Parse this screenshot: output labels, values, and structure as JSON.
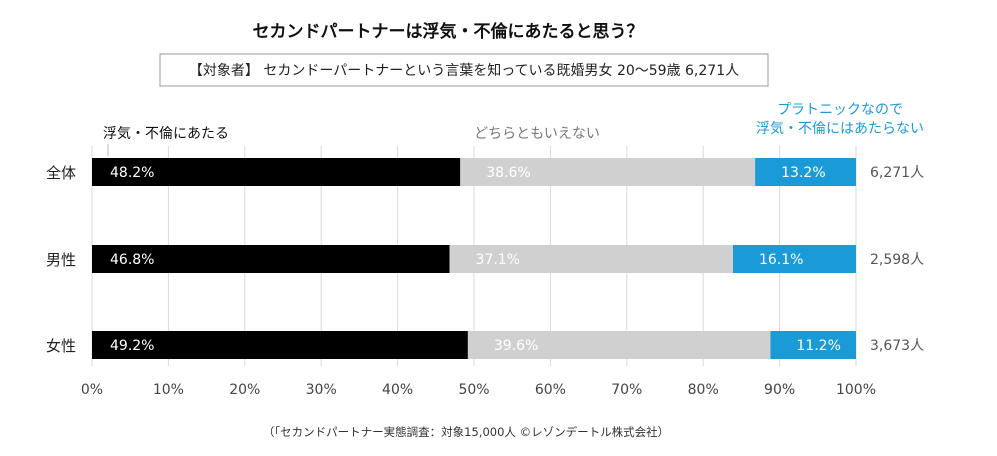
{
  "chart_data": {
    "type": "bar",
    "orientation": "horizontal",
    "stacked": true,
    "title": "セカンドパートナーは浮気・不倫にあたると思う？",
    "subtitle": "【対象者】 セカンドーパートナーという言葉を知っている既婚男女 20～59歳 6,271人",
    "categories": [
      "全体",
      "男性",
      "女性"
    ],
    "counts": [
      "6,271人",
      "2,598人",
      "3,673人"
    ],
    "series": [
      {
        "name": "浮気・不倫にあたる",
        "values": [
          48.2,
          46.8,
          49.2
        ],
        "color": "#000000",
        "label_color": "#ffffff",
        "legend_color": "#111111"
      },
      {
        "name": "どちらともいえない",
        "values": [
          38.6,
          37.1,
          39.6
        ],
        "color": "#d0d0d0",
        "label_color": "#ffffff",
        "legend_color": "#777777"
      },
      {
        "name": "プラトニックなので\n浮気・不倫にはあたらない",
        "values": [
          13.2,
          16.1,
          11.2
        ],
        "color": "#1a9bd7",
        "label_color": "#ffffff",
        "legend_color": "#1a9bd7"
      }
    ],
    "xlim": [
      0,
      100
    ],
    "xticks": [
      0,
      10,
      20,
      30,
      40,
      50,
      60,
      70,
      80,
      90,
      100
    ],
    "tick_suffix": "%",
    "grid": true,
    "gridline_color": "#d9d9d9",
    "source": "（「セカンドパートナー実態調査：対象15,000人 ©レゾンデートル株式会社）"
  }
}
